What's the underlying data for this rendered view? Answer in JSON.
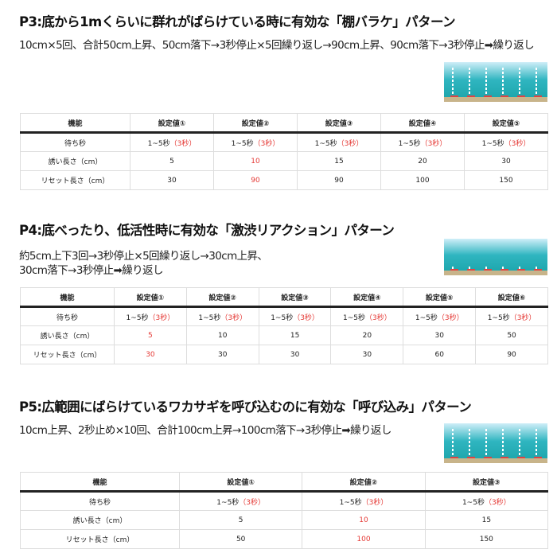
{
  "sections": [
    {
      "title": "P3:底から1mくらいに群れがばらけている時に有効な「棚バラケ」パターン",
      "desc": [
        "10cm×5回、合計50cm上昇、50cm落下→3秒停止×5回繰り返し→90cm上昇、90cm落下→3秒停止➡繰り返し"
      ],
      "headers": [
        "機能",
        "設定値①",
        "設定値②",
        "設定値③",
        "設定値④",
        "設定値⑤"
      ],
      "rows": [
        [
          {
            "t": "待ち秒"
          },
          {
            "t": "1~5秒",
            "r": "（3秒）"
          },
          {
            "t": "1~5秒",
            "r": "（3秒）"
          },
          {
            "t": "1~5秒",
            "r": "（3秒）"
          },
          {
            "t": "1~5秒",
            "r": "（3秒）"
          },
          {
            "t": "1~5秒",
            "r": "（3秒）"
          }
        ],
        [
          {
            "t": "誘い長さ（cm）"
          },
          {
            "t": "5"
          },
          {
            "r": "10"
          },
          {
            "t": "15"
          },
          {
            "t": "20"
          },
          {
            "t": "30"
          }
        ],
        [
          {
            "t": "リセット長さ（cm）"
          },
          {
            "t": "30"
          },
          {
            "r": "90"
          },
          {
            "t": "90"
          },
          {
            "t": "100"
          },
          {
            "t": "150"
          }
        ]
      ]
    },
    {
      "title": "P4:底べったり、低活性時に有効な「激渋リアクション」パターン",
      "desc": [
        "約5cm上下3回→3秒停止×5回繰り返し→30cm上昇、",
        "30cm落下→3秒停止➡繰り返し"
      ],
      "headers": [
        "機能",
        "設定値①",
        "設定値②",
        "設定値③",
        "設定値④",
        "設定値⑤",
        "設定値⑥"
      ],
      "rows": [
        [
          {
            "t": "待ち秒"
          },
          {
            "t": "1~5秒",
            "r": "（3秒）"
          },
          {
            "t": "1~5秒",
            "r": "（3秒）"
          },
          {
            "t": "1~5秒",
            "r": "（3秒）"
          },
          {
            "t": "1~5秒",
            "r": "（3秒）"
          },
          {
            "t": "1~5秒",
            "r": "（3秒）"
          },
          {
            "t": "1~5秒",
            "r": "（3秒）"
          }
        ],
        [
          {
            "t": "誘い長さ（cm）"
          },
          {
            "r": "5"
          },
          {
            "t": "10"
          },
          {
            "t": "15"
          },
          {
            "t": "20"
          },
          {
            "t": "30"
          },
          {
            "t": "50"
          }
        ],
        [
          {
            "t": "リセット長さ（cm）"
          },
          {
            "r": "30"
          },
          {
            "t": "30"
          },
          {
            "t": "30"
          },
          {
            "t": "30"
          },
          {
            "t": "60"
          },
          {
            "t": "90"
          }
        ]
      ]
    },
    {
      "title": "P5:広範囲にばらけているワカサギを呼び込むのに有効な「呼び込み」パターン",
      "desc": [
        "10cm上昇、2秒止め×10回、合計100cm上昇→100cm落下→3秒停止➡繰り返し"
      ],
      "headers": [
        "機能",
        "設定値①",
        "設定値②",
        "設定値③"
      ],
      "rows": [
        [
          {
            "t": "待ち秒"
          },
          {
            "t": "1~5秒",
            "r": "（3秒）"
          },
          {
            "t": "1~5秒",
            "r": "（3秒）"
          },
          {
            "t": "1~5秒",
            "r": "（3秒）"
          }
        ],
        [
          {
            "t": "誘い長さ（cm）"
          },
          {
            "t": "5"
          },
          {
            "r": "10"
          },
          {
            "t": "15"
          }
        ],
        [
          {
            "t": "リセット長さ（cm）"
          },
          {
            "t": "50"
          },
          {
            "r": "100"
          },
          {
            "t": "150"
          }
        ]
      ]
    }
  ]
}
